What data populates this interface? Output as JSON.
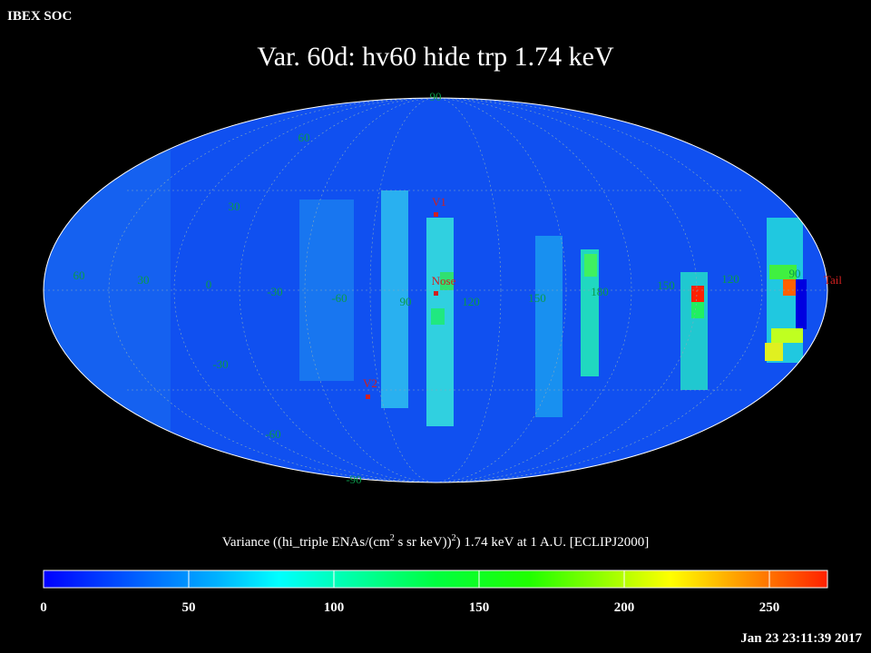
{
  "header": {
    "source": "IBEX SOC",
    "title": "Var. 60d: hv60 hide trp 1.74 keV",
    "timestamp": "Jan 23 23:11:39 2017"
  },
  "grid_labels": [
    "90",
    "60",
    "30",
    "60",
    "30",
    "0",
    "-30",
    "-60",
    "90",
    "120",
    "150",
    "180",
    "150",
    "120",
    "90",
    "-30",
    "-60",
    "-90"
  ],
  "markers": {
    "v1": "V1",
    "nose": "Nose",
    "v2": "V2",
    "tail": "Tail"
  },
  "colorbar": {
    "label_parts": [
      "Variance ((hi_triple ENAs/(cm",
      "2",
      " s sr keV))",
      "2",
      ") 1.74 keV at 1 A.U. [ECLIPJ2000]"
    ],
    "lim": [
      0,
      270
    ],
    "ticks": [
      0,
      50,
      100,
      150,
      200,
      250
    ]
  }
}
